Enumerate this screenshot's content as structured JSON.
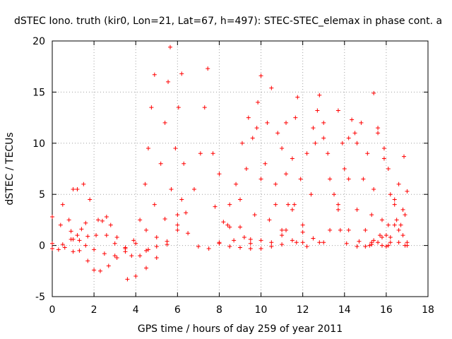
{
  "chart_data": {
    "type": "scatter",
    "title": "dSTEC Iono. truth (kir0, Lon=21, Lat=67, h=497): STEC-STEC_elemax in phase cont. a",
    "xlabel": "GPS time / hours of day 259 of year 2011",
    "ylabel": "dSTEC  / TECUs",
    "xlim": [
      0,
      18
    ],
    "ylim": [
      -5,
      20
    ],
    "xticks": [
      "0",
      "2",
      "4",
      "6",
      "8",
      "10",
      "12",
      "14",
      "16",
      "18"
    ],
    "yticks": [
      "-5",
      "0",
      "5",
      "10",
      "15",
      "20"
    ],
    "grid": true,
    "marker": "+",
    "color": "#ff0000",
    "arcs": [
      [
        [
          0.0,
          0.2
        ],
        [
          0.3,
          -0.4
        ],
        [
          0.6,
          -0.2
        ],
        [
          1.0,
          0.6
        ],
        [
          1.4,
          1.6
        ],
        [
          1.6,
          2.2
        ]
      ],
      [
        [
          0.0,
          2.8
        ],
        [
          0.4,
          2.0
        ],
        [
          0.9,
          0.6
        ],
        [
          1.3,
          -0.5
        ],
        [
          1.7,
          -1.5
        ],
        [
          2.0,
          -2.4
        ],
        [
          2.3,
          -2.5
        ],
        [
          2.7,
          -2.0
        ],
        [
          3.1,
          -1.2
        ]
      ],
      [
        [
          0.0,
          -0.3
        ],
        [
          0.5,
          0.1
        ],
        [
          0.9,
          1.4
        ],
        [
          1.0,
          5.5
        ],
        [
          1.2,
          5.5
        ],
        [
          1.5,
          6.0
        ],
        [
          1.8,
          4.5
        ],
        [
          2.2,
          2.5
        ],
        [
          2.6,
          1.0
        ],
        [
          3.0,
          0.2
        ],
        [
          3.5,
          -0.2
        ],
        [
          3.9,
          0.5
        ],
        [
          4.2,
          2.5
        ],
        [
          4.45,
          6.0
        ],
        [
          4.6,
          9.5
        ],
        [
          4.75,
          13.5
        ],
        [
          4.9,
          16.7
        ]
      ],
      [
        [
          0.5,
          4.0
        ],
        [
          0.8,
          2.5
        ],
        [
          1.2,
          1.0
        ],
        [
          1.6,
          0.0
        ],
        [
          2.0,
          -0.4
        ],
        [
          2.5,
          -0.8
        ],
        [
          3.0,
          -1.0
        ],
        [
          3.5,
          -0.6
        ],
        [
          4.0,
          0.2
        ],
        [
          4.5,
          1.5
        ],
        [
          4.9,
          4.0
        ],
        [
          5.2,
          8.0
        ],
        [
          5.4,
          12.0
        ],
        [
          5.55,
          16.0
        ],
        [
          5.65,
          19.4
        ]
      ],
      [
        [
          1.0,
          -0.6
        ],
        [
          1.3,
          0.5
        ],
        [
          1.7,
          0.9
        ],
        [
          2.1,
          1.0
        ],
        [
          2.4,
          2.4
        ],
        [
          2.6,
          2.8
        ],
        [
          2.8,
          2.0
        ],
        [
          3.1,
          0.8
        ],
        [
          3.5,
          -0.3
        ],
        [
          3.8,
          -1.0
        ],
        [
          4.2,
          -1.0
        ],
        [
          4.6,
          -0.4
        ],
        [
          5.0,
          0.8
        ],
        [
          5.4,
          2.6
        ],
        [
          5.7,
          5.5
        ],
        [
          5.9,
          9.5
        ],
        [
          6.05,
          13.5
        ],
        [
          6.2,
          16.8
        ]
      ],
      [
        [
          3.6,
          -3.3
        ],
        [
          4.0,
          -3.0
        ],
        [
          4.5,
          -2.2
        ],
        [
          5.0,
          -1.2
        ],
        [
          5.5,
          0.1
        ],
        [
          6.0,
          1.5
        ],
        [
          6.4,
          3.2
        ],
        [
          6.8,
          5.5
        ],
        [
          7.1,
          9.0
        ],
        [
          7.3,
          13.5
        ],
        [
          7.45,
          17.3
        ]
      ],
      [
        [
          4.5,
          -0.5
        ],
        [
          5.0,
          -0.1
        ],
        [
          5.5,
          0.4
        ],
        [
          6.0,
          2.0
        ],
        [
          6.2,
          4.5
        ],
        [
          6.3,
          8.0
        ]
      ],
      [
        [
          6.0,
          3.0
        ],
        [
          6.5,
          1.2
        ],
        [
          7.0,
          -0.1
        ],
        [
          7.5,
          -0.3
        ],
        [
          8.0,
          0.3
        ],
        [
          8.5,
          1.8
        ],
        [
          9.0,
          4.5
        ],
        [
          9.3,
          7.5
        ],
        [
          9.6,
          10.5
        ],
        [
          9.85,
          14.0
        ],
        [
          10.0,
          16.6
        ]
      ],
      [
        [
          7.7,
          9.0
        ],
        [
          8.0,
          7.0
        ],
        [
          8.5,
          4.0
        ],
        [
          9.0,
          1.8
        ],
        [
          9.5,
          0.2
        ],
        [
          10.0,
          -0.3
        ],
        [
          10.5,
          -0.1
        ],
        [
          11.0,
          1.0
        ],
        [
          11.3,
          4.0
        ],
        [
          11.5,
          8.5
        ],
        [
          11.65,
          12.5
        ],
        [
          11.75,
          14.5
        ]
      ],
      [
        [
          7.8,
          3.8
        ],
        [
          8.2,
          2.3
        ],
        [
          8.7,
          0.5
        ],
        [
          9.0,
          -0.2
        ],
        [
          9.5,
          -0.3
        ],
        [
          10.0,
          0.5
        ],
        [
          10.4,
          2.5
        ],
        [
          10.7,
          6.0
        ],
        [
          11.0,
          9.5
        ],
        [
          11.2,
          12.0
        ]
      ],
      [
        [
          8.0,
          0.2
        ],
        [
          8.4,
          2.0
        ],
        [
          8.8,
          6.0
        ],
        [
          9.1,
          10.0
        ],
        [
          9.4,
          12.5
        ],
        [
          9.8,
          11.5
        ],
        [
          10.2,
          8.0
        ],
        [
          10.7,
          4.0
        ],
        [
          11.2,
          1.5
        ],
        [
          11.7,
          0.3
        ],
        [
          12.2,
          -0.1
        ]
      ],
      [
        [
          8.5,
          -0.1
        ],
        [
          9.2,
          0.8
        ],
        [
          9.7,
          3.0
        ],
        [
          10.0,
          6.5
        ],
        [
          10.3,
          12.0
        ],
        [
          10.5,
          15.4
        ],
        [
          10.8,
          11.0
        ],
        [
          11.2,
          7.0
        ],
        [
          11.6,
          4.0
        ],
        [
          12.0,
          2.0
        ],
        [
          12.5,
          0.7
        ],
        [
          13.0,
          0.3
        ]
      ],
      [
        [
          9.5,
          0.6
        ],
        [
          10.5,
          0.3
        ],
        [
          11.0,
          0.1
        ],
        [
          11.5,
          0.5
        ],
        [
          12.0,
          1.3
        ],
        [
          12.4,
          5.0
        ],
        [
          12.6,
          10.0
        ],
        [
          12.8,
          14.7
        ],
        [
          13.0,
          12.0
        ],
        [
          13.2,
          9.0
        ],
        [
          13.5,
          5.0
        ],
        [
          13.8,
          1.5
        ],
        [
          14.1,
          0.2
        ],
        [
          14.6,
          -0.1
        ],
        [
          15.2,
          0.0
        ],
        [
          16.0,
          -0.1
        ]
      ],
      [
        [
          11.0,
          1.5
        ],
        [
          11.5,
          3.5
        ],
        [
          11.9,
          6.5
        ],
        [
          12.2,
          9.0
        ],
        [
          12.5,
          11.5
        ],
        [
          12.7,
          13.2
        ],
        [
          13.0,
          10.5
        ],
        [
          13.3,
          6.5
        ],
        [
          13.7,
          3.5
        ],
        [
          14.2,
          1.5
        ],
        [
          14.7,
          0.4
        ],
        [
          15.3,
          0.3
        ]
      ],
      [
        [
          12.0,
          0.3
        ],
        [
          12.8,
          0.3
        ],
        [
          13.3,
          1.5
        ],
        [
          13.7,
          4.0
        ],
        [
          14.0,
          7.5
        ],
        [
          14.2,
          10.5
        ],
        [
          14.35,
          12.3
        ],
        [
          14.6,
          10.0
        ],
        [
          14.9,
          6.5
        ],
        [
          15.3,
          3.0
        ],
        [
          15.7,
          1.0
        ],
        [
          16.1,
          0.0
        ]
      ],
      [
        [
          13.7,
          13.2
        ],
        [
          13.9,
          10.0
        ],
        [
          14.2,
          6.5
        ],
        [
          14.6,
          3.5
        ],
        [
          15.0,
          1.5
        ],
        [
          15.4,
          0.5
        ],
        [
          15.8,
          0.8
        ],
        [
          16.1,
          2.0
        ],
        [
          16.4,
          4.0
        ],
        [
          16.6,
          6.0
        ],
        [
          16.85,
          8.7
        ]
      ],
      [
        [
          14.5,
          11.0
        ],
        [
          14.8,
          12.0
        ],
        [
          15.1,
          9.0
        ],
        [
          15.4,
          5.5
        ],
        [
          15.8,
          2.5
        ],
        [
          16.2,
          0.8
        ],
        [
          16.6,
          0.3
        ],
        [
          16.9,
          0.0
        ]
      ],
      [
        [
          15.4,
          14.9
        ],
        [
          15.6,
          11.0
        ],
        [
          15.9,
          9.5
        ],
        [
          16.1,
          7.5
        ],
        [
          16.4,
          4.5
        ],
        [
          16.7,
          2.0
        ],
        [
          17.0,
          0.0
        ]
      ],
      [
        [
          15.6,
          11.5
        ],
        [
          15.9,
          8.5
        ],
        [
          16.2,
          5.0
        ],
        [
          16.5,
          2.5
        ],
        [
          16.8,
          1.0
        ],
        [
          17.0,
          0.3
        ]
      ],
      [
        [
          15.0,
          -0.1
        ],
        [
          15.6,
          0.3
        ],
        [
          16.0,
          1.0
        ],
        [
          16.4,
          2.0
        ],
        [
          16.8,
          3.5
        ],
        [
          17.0,
          5.3
        ]
      ],
      [
        [
          15.3,
          0.1
        ],
        [
          15.8,
          0.0
        ],
        [
          16.2,
          0.3
        ],
        [
          16.6,
          1.5
        ],
        [
          16.9,
          3.0
        ]
      ]
    ]
  }
}
